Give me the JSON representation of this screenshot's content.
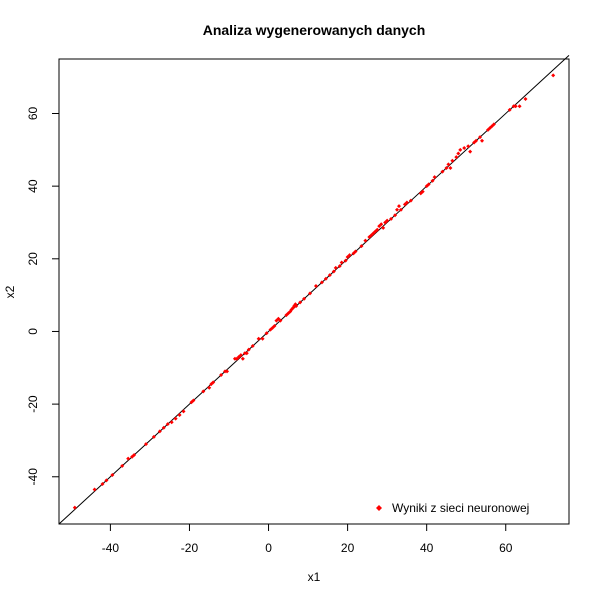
{
  "chart_data": {
    "type": "scatter",
    "title": "Analiza wygenerowanych danych",
    "xlabel": "x1",
    "ylabel": "x2",
    "xlim": [
      -53,
      76
    ],
    "ylim": [
      -53,
      75
    ],
    "xticks": [
      -40,
      -20,
      0,
      20,
      40,
      60
    ],
    "yticks": [
      -40,
      -20,
      0,
      20,
      40,
      60
    ],
    "grid": false,
    "legend_position": "bottom-right",
    "reference_line": {
      "from": [
        -53,
        -53
      ],
      "to": [
        76,
        76
      ],
      "color": "#000000"
    },
    "series": [
      {
        "name": "Wyniki z sieci neuronowej",
        "color": "#ff0000",
        "marker": "diamond",
        "points": [
          [
            -49,
            -48.5
          ],
          [
            -44,
            -43.5
          ],
          [
            -42,
            -42
          ],
          [
            -41,
            -41
          ],
          [
            -39.5,
            -39.5
          ],
          [
            -37,
            -37
          ],
          [
            -35.5,
            -35
          ],
          [
            -34.5,
            -34.5
          ],
          [
            -34,
            -34
          ],
          [
            -31,
            -31
          ],
          [
            -29,
            -29
          ],
          [
            -27.5,
            -27.5
          ],
          [
            -26.5,
            -26.5
          ],
          [
            -25.5,
            -25.5
          ],
          [
            -24.5,
            -25
          ],
          [
            -23.5,
            -24
          ],
          [
            -22.5,
            -23
          ],
          [
            -21.5,
            -22
          ],
          [
            -19.5,
            -19.5
          ],
          [
            -19,
            -19
          ],
          [
            -16.5,
            -16.5
          ],
          [
            -15,
            -15.5
          ],
          [
            -14.5,
            -14.5
          ],
          [
            -14,
            -14
          ],
          [
            -12,
            -12
          ],
          [
            -11,
            -11
          ],
          [
            -10.5,
            -11
          ],
          [
            -8.5,
            -7.5
          ],
          [
            -8,
            -7.5
          ],
          [
            -7.5,
            -7
          ],
          [
            -7,
            -6.5
          ],
          [
            -6.5,
            -7.5
          ],
          [
            -6,
            -6
          ],
          [
            -5.5,
            -6
          ],
          [
            -5,
            -5
          ],
          [
            -4,
            -4
          ],
          [
            -2.5,
            -2
          ],
          [
            -1.5,
            -2
          ],
          [
            -0.5,
            -0.5
          ],
          [
            0.5,
            0.5
          ],
          [
            1,
            1
          ],
          [
            1.5,
            1.5
          ],
          [
            2,
            3
          ],
          [
            2.5,
            3.5
          ],
          [
            3,
            3
          ],
          [
            4.5,
            4.5
          ],
          [
            5,
            5
          ],
          [
            5.5,
            5.5
          ],
          [
            5.8,
            6
          ],
          [
            6.2,
            6.5
          ],
          [
            6.5,
            7
          ],
          [
            6.8,
            7.5
          ],
          [
            7,
            7
          ],
          [
            8,
            8
          ],
          [
            9,
            9
          ],
          [
            10.5,
            10.5
          ],
          [
            12,
            12.5
          ],
          [
            13.5,
            13.5
          ],
          [
            14.5,
            14.5
          ],
          [
            15.5,
            15.5
          ],
          [
            16.5,
            16.5
          ],
          [
            17,
            17.5
          ],
          [
            18,
            18
          ],
          [
            18.5,
            19
          ],
          [
            19.5,
            19.5
          ],
          [
            20,
            20.5
          ],
          [
            20.5,
            21
          ],
          [
            21.5,
            21.5
          ],
          [
            22,
            22
          ],
          [
            23.5,
            23.5
          ],
          [
            24.5,
            25
          ],
          [
            25.5,
            26
          ],
          [
            26,
            26.5
          ],
          [
            26.5,
            27
          ],
          [
            27,
            27.5
          ],
          [
            27.5,
            28
          ],
          [
            28,
            29
          ],
          [
            28.5,
            29.5
          ],
          [
            29,
            28.5
          ],
          [
            29.5,
            30
          ],
          [
            30,
            30.5
          ],
          [
            31,
            31
          ],
          [
            32,
            32
          ],
          [
            32.5,
            33.5
          ],
          [
            33,
            34.5
          ],
          [
            33.5,
            33.5
          ],
          [
            34.5,
            35
          ],
          [
            35,
            35.5
          ],
          [
            36,
            36
          ],
          [
            38.5,
            38
          ],
          [
            39,
            38.5
          ],
          [
            40,
            40
          ],
          [
            40.5,
            40.5
          ],
          [
            41.5,
            41.5
          ],
          [
            42,
            42.5
          ],
          [
            44,
            44
          ],
          [
            45,
            45
          ],
          [
            45.5,
            46
          ],
          [
            46,
            45
          ],
          [
            46.5,
            47
          ],
          [
            47.5,
            48
          ],
          [
            48,
            49
          ],
          [
            48.5,
            50
          ],
          [
            49.5,
            50.5
          ],
          [
            50.5,
            51
          ],
          [
            51,
            49.5
          ],
          [
            52,
            52
          ],
          [
            52.5,
            52.5
          ],
          [
            53.5,
            53.5
          ],
          [
            54,
            52.5
          ],
          [
            55.5,
            55.5
          ],
          [
            56,
            56
          ],
          [
            56.5,
            56.5
          ],
          [
            57,
            57
          ],
          [
            61,
            61
          ],
          [
            62,
            62
          ],
          [
            62.5,
            62
          ],
          [
            63.5,
            62
          ],
          [
            65,
            64
          ],
          [
            72,
            70.5
          ]
        ]
      }
    ]
  }
}
